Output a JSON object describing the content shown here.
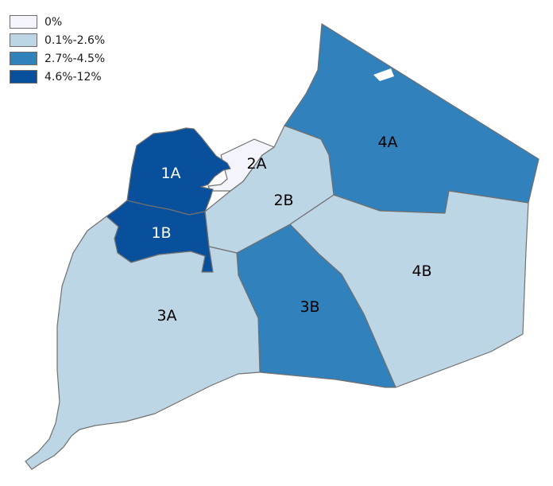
{
  "legend": {
    "items": [
      {
        "label": "0%",
        "color": "#f3f4fc"
      },
      {
        "label": "0.1%-2.6%",
        "color": "#bdd6e6"
      },
      {
        "label": "2.7%-4.5%",
        "color": "#3181bd"
      },
      {
        "label": "4.6%-12%",
        "color": "#08509c"
      }
    ]
  },
  "regions": [
    {
      "id": "1A",
      "label": "1A",
      "class": "4.6%-12%",
      "color": "#08509c",
      "label_color": "#ffffff"
    },
    {
      "id": "1B",
      "label": "1B",
      "class": "4.6%-12%",
      "color": "#08509c",
      "label_color": "#ffffff"
    },
    {
      "id": "2A",
      "label": "2A",
      "class": "0%",
      "color": "#f3f4fc",
      "label_color": "#000000"
    },
    {
      "id": "2B",
      "label": "2B",
      "class": "0.1%-2.6%",
      "color": "#bdd6e6",
      "label_color": "#000000"
    },
    {
      "id": "3A",
      "label": "3A",
      "class": "0.1%-2.6%",
      "color": "#bdd6e6",
      "label_color": "#000000"
    },
    {
      "id": "3B",
      "label": "3B",
      "class": "2.7%-4.5%",
      "color": "#3181bd",
      "label_color": "#000000"
    },
    {
      "id": "4A",
      "label": "4A",
      "class": "2.7%-4.5%",
      "color": "#3181bd",
      "label_color": "#000000"
    },
    {
      "id": "4B",
      "label": "4B",
      "class": "0.1%-2.6%",
      "color": "#bdd6e6",
      "label_color": "#000000"
    }
  ]
}
